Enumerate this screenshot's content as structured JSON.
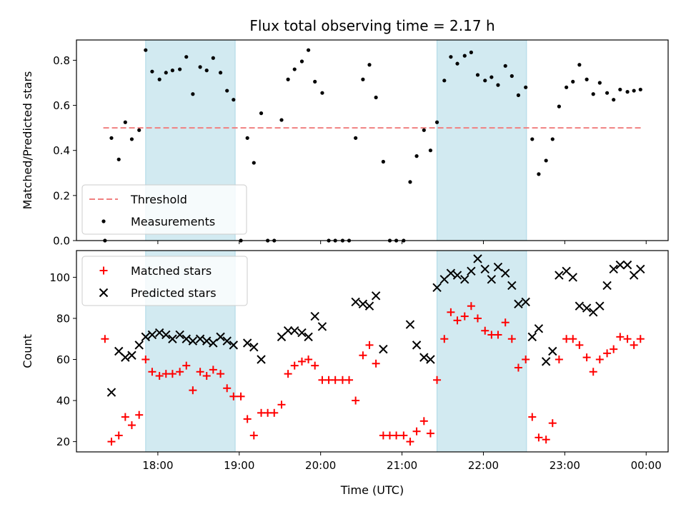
{
  "chart_data": {
    "title": "Flux total observing time = 2.17 h",
    "x_label": "Time (UTC)",
    "x_ticks": [
      "18:00",
      "19:00",
      "20:00",
      "21:00",
      "22:00",
      "23:00",
      "00:00"
    ],
    "x_tick_hours": [
      18,
      19,
      20,
      21,
      22,
      23,
      24
    ],
    "x_range": [
      17.0,
      24.27
    ],
    "shaded_intervals": [
      [
        17.85,
        18.95
      ],
      [
        21.43,
        22.53
      ]
    ],
    "shade_color": "#add8e6",
    "panels": [
      {
        "type": "scatter",
        "ylabel": "Matched/Predicted stars",
        "ylim": [
          0,
          0.89
        ],
        "yticks": [
          0.0,
          0.2,
          0.4,
          0.6,
          0.8
        ],
        "ytick_labels": [
          "0.0",
          "0.2",
          "0.4",
          "0.6",
          "0.8"
        ],
        "legend": {
          "position": "lower-left",
          "entries": [
            "Threshold",
            "Measurements"
          ]
        },
        "threshold": {
          "name": "Threshold",
          "value": 0.5,
          "x_range": [
            17.33,
            23.95
          ],
          "color": "#f08080"
        },
        "series": [
          {
            "name": "Measurements",
            "marker": "dot",
            "color": "#000000",
            "points": [
              [
                17.35,
                0.0
              ],
              [
                17.43,
                0.455
              ],
              [
                17.52,
                0.36
              ],
              [
                17.6,
                0.525
              ],
              [
                17.68,
                0.45
              ],
              [
                17.77,
                0.49
              ],
              [
                17.85,
                0.845
              ],
              [
                17.93,
                0.75
              ],
              [
                18.02,
                0.715
              ],
              [
                18.1,
                0.745
              ],
              [
                18.18,
                0.755
              ],
              [
                18.27,
                0.76
              ],
              [
                18.35,
                0.815
              ],
              [
                18.43,
                0.65
              ],
              [
                18.52,
                0.77
              ],
              [
                18.6,
                0.755
              ],
              [
                18.68,
                0.81
              ],
              [
                18.77,
                0.745
              ],
              [
                18.85,
                0.665
              ],
              [
                18.93,
                0.625
              ],
              [
                19.02,
                0.0
              ],
              [
                19.1,
                0.455
              ],
              [
                19.18,
                0.345
              ],
              [
                19.27,
                0.565
              ],
              [
                19.35,
                0.0
              ],
              [
                19.43,
                0.0
              ],
              [
                19.52,
                0.535
              ],
              [
                19.6,
                0.715
              ],
              [
                19.68,
                0.76
              ],
              [
                19.77,
                0.795
              ],
              [
                19.85,
                0.845
              ],
              [
                19.93,
                0.705
              ],
              [
                20.02,
                0.655
              ],
              [
                20.1,
                0.0
              ],
              [
                20.18,
                0.0
              ],
              [
                20.27,
                0.0
              ],
              [
                20.35,
                0.0
              ],
              [
                20.43,
                0.455
              ],
              [
                20.52,
                0.715
              ],
              [
                20.6,
                0.78
              ],
              [
                20.68,
                0.635
              ],
              [
                20.77,
                0.35
              ],
              [
                20.85,
                0.0
              ],
              [
                20.93,
                0.0
              ],
              [
                21.02,
                0.0
              ],
              [
                21.1,
                0.26
              ],
              [
                21.18,
                0.375
              ],
              [
                21.27,
                0.49
              ],
              [
                21.35,
                0.4
              ],
              [
                21.43,
                0.525
              ],
              [
                21.52,
                0.71
              ],
              [
                21.6,
                0.815
              ],
              [
                21.68,
                0.785
              ],
              [
                21.77,
                0.82
              ],
              [
                21.85,
                0.835
              ],
              [
                21.93,
                0.735
              ],
              [
                22.02,
                0.71
              ],
              [
                22.1,
                0.725
              ],
              [
                22.18,
                0.69
              ],
              [
                22.27,
                0.775
              ],
              [
                22.35,
                0.73
              ],
              [
                22.43,
                0.645
              ],
              [
                22.52,
                0.68
              ],
              [
                22.6,
                0.45
              ],
              [
                22.68,
                0.295
              ],
              [
                22.77,
                0.355
              ],
              [
                22.85,
                0.45
              ],
              [
                22.93,
                0.595
              ],
              [
                23.02,
                0.68
              ],
              [
                23.1,
                0.705
              ],
              [
                23.18,
                0.78
              ],
              [
                23.27,
                0.715
              ],
              [
                23.35,
                0.65
              ],
              [
                23.43,
                0.7
              ],
              [
                23.52,
                0.655
              ],
              [
                23.6,
                0.625
              ],
              [
                23.68,
                0.67
              ],
              [
                23.77,
                0.66
              ],
              [
                23.85,
                0.665
              ],
              [
                23.93,
                0.67
              ]
            ]
          }
        ]
      },
      {
        "type": "scatter",
        "ylabel": "Count",
        "ylim": [
          15,
          113
        ],
        "yticks": [
          20,
          40,
          60,
          80,
          100
        ],
        "ytick_labels": [
          "20",
          "40",
          "60",
          "80",
          "100"
        ],
        "legend": {
          "position": "upper-left",
          "entries": [
            "Matched stars",
            "Predicted stars"
          ]
        },
        "series": [
          {
            "name": "Matched stars",
            "marker": "plus",
            "color": "#ff0000",
            "points": [
              [
                17.35,
                70
              ],
              [
                17.43,
                20
              ],
              [
                17.52,
                23
              ],
              [
                17.6,
                32
              ],
              [
                17.68,
                28
              ],
              [
                17.77,
                33
              ],
              [
                17.85,
                60
              ],
              [
                17.93,
                54
              ],
              [
                18.02,
                52
              ],
              [
                18.1,
                53
              ],
              [
                18.18,
                53
              ],
              [
                18.27,
                54
              ],
              [
                18.35,
                57
              ],
              [
                18.43,
                45
              ],
              [
                18.52,
                54
              ],
              [
                18.6,
                52
              ],
              [
                18.68,
                55
              ],
              [
                18.77,
                53
              ],
              [
                18.85,
                46
              ],
              [
                18.93,
                42
              ],
              [
                19.02,
                42
              ],
              [
                19.1,
                31
              ],
              [
                19.18,
                23
              ],
              [
                19.27,
                34
              ],
              [
                19.35,
                34
              ],
              [
                19.43,
                34
              ],
              [
                19.52,
                38
              ],
              [
                19.6,
                53
              ],
              [
                19.68,
                57
              ],
              [
                19.77,
                59
              ],
              [
                19.85,
                60
              ],
              [
                19.93,
                57
              ],
              [
                20.02,
                50
              ],
              [
                20.1,
                50
              ],
              [
                20.18,
                50
              ],
              [
                20.27,
                50
              ],
              [
                20.35,
                50
              ],
              [
                20.43,
                40
              ],
              [
                20.52,
                62
              ],
              [
                20.6,
                67
              ],
              [
                20.68,
                58
              ],
              [
                20.77,
                23
              ],
              [
                20.85,
                23
              ],
              [
                20.93,
                23
              ],
              [
                21.02,
                23
              ],
              [
                21.1,
                20
              ],
              [
                21.18,
                25
              ],
              [
                21.27,
                30
              ],
              [
                21.35,
                24
              ],
              [
                21.43,
                50
              ],
              [
                21.52,
                70
              ],
              [
                21.6,
                83
              ],
              [
                21.68,
                79
              ],
              [
                21.77,
                81
              ],
              [
                21.85,
                86
              ],
              [
                21.93,
                80
              ],
              [
                22.02,
                74
              ],
              [
                22.1,
                72
              ],
              [
                22.18,
                72
              ],
              [
                22.27,
                78
              ],
              [
                22.35,
                70
              ],
              [
                22.43,
                56
              ],
              [
                22.52,
                60
              ],
              [
                22.6,
                32
              ],
              [
                22.68,
                22
              ],
              [
                22.77,
                21
              ],
              [
                22.85,
                29
              ],
              [
                22.93,
                60
              ],
              [
                23.02,
                70
              ],
              [
                23.1,
                70
              ],
              [
                23.18,
                67
              ],
              [
                23.27,
                61
              ],
              [
                23.35,
                54
              ],
              [
                23.43,
                60
              ],
              [
                23.52,
                63
              ],
              [
                23.6,
                65
              ],
              [
                23.68,
                71
              ],
              [
                23.77,
                70
              ],
              [
                23.85,
                67
              ],
              [
                23.93,
                70
              ]
            ]
          },
          {
            "name": "Predicted stars",
            "marker": "x",
            "color": "#000000",
            "points": [
              [
                17.43,
                44
              ],
              [
                17.52,
                64
              ],
              [
                17.6,
                61
              ],
              [
                17.68,
                62
              ],
              [
                17.77,
                67
              ],
              [
                17.85,
                71
              ],
              [
                17.93,
                72
              ],
              [
                18.02,
                73
              ],
              [
                18.1,
                72
              ],
              [
                18.18,
                70
              ],
              [
                18.27,
                72
              ],
              [
                18.35,
                70
              ],
              [
                18.43,
                69
              ],
              [
                18.52,
                70
              ],
              [
                18.6,
                69
              ],
              [
                18.68,
                68
              ],
              [
                18.77,
                71
              ],
              [
                18.85,
                69
              ],
              [
                18.93,
                67
              ],
              [
                19.1,
                68
              ],
              [
                19.18,
                66
              ],
              [
                19.27,
                60
              ],
              [
                19.52,
                71
              ],
              [
                19.6,
                74
              ],
              [
                19.68,
                74
              ],
              [
                19.77,
                73
              ],
              [
                19.85,
                71
              ],
              [
                19.93,
                81
              ],
              [
                20.02,
                76
              ],
              [
                20.43,
                88
              ],
              [
                20.52,
                87
              ],
              [
                20.6,
                86
              ],
              [
                20.68,
                91
              ],
              [
                20.77,
                65
              ],
              [
                21.1,
                77
              ],
              [
                21.18,
                67
              ],
              [
                21.27,
                61
              ],
              [
                21.35,
                60
              ],
              [
                21.43,
                95
              ],
              [
                21.52,
                99
              ],
              [
                21.6,
                102
              ],
              [
                21.68,
                101
              ],
              [
                21.77,
                99
              ],
              [
                21.85,
                103
              ],
              [
                21.93,
                109
              ],
              [
                22.02,
                104
              ],
              [
                22.1,
                99
              ],
              [
                22.18,
                105
              ],
              [
                22.27,
                102
              ],
              [
                22.35,
                96
              ],
              [
                22.43,
                87
              ],
              [
                22.52,
                88
              ],
              [
                22.6,
                71
              ],
              [
                22.68,
                75
              ],
              [
                22.77,
                59
              ],
              [
                22.85,
                64
              ],
              [
                22.93,
                101
              ],
              [
                23.02,
                103
              ],
              [
                23.1,
                100
              ],
              [
                23.18,
                86
              ],
              [
                23.27,
                85
              ],
              [
                23.35,
                83
              ],
              [
                23.43,
                86
              ],
              [
                23.52,
                96
              ],
              [
                23.6,
                104
              ],
              [
                23.68,
                106
              ],
              [
                23.77,
                106
              ],
              [
                23.85,
                101
              ],
              [
                23.93,
                104
              ]
            ]
          }
        ]
      }
    ]
  }
}
